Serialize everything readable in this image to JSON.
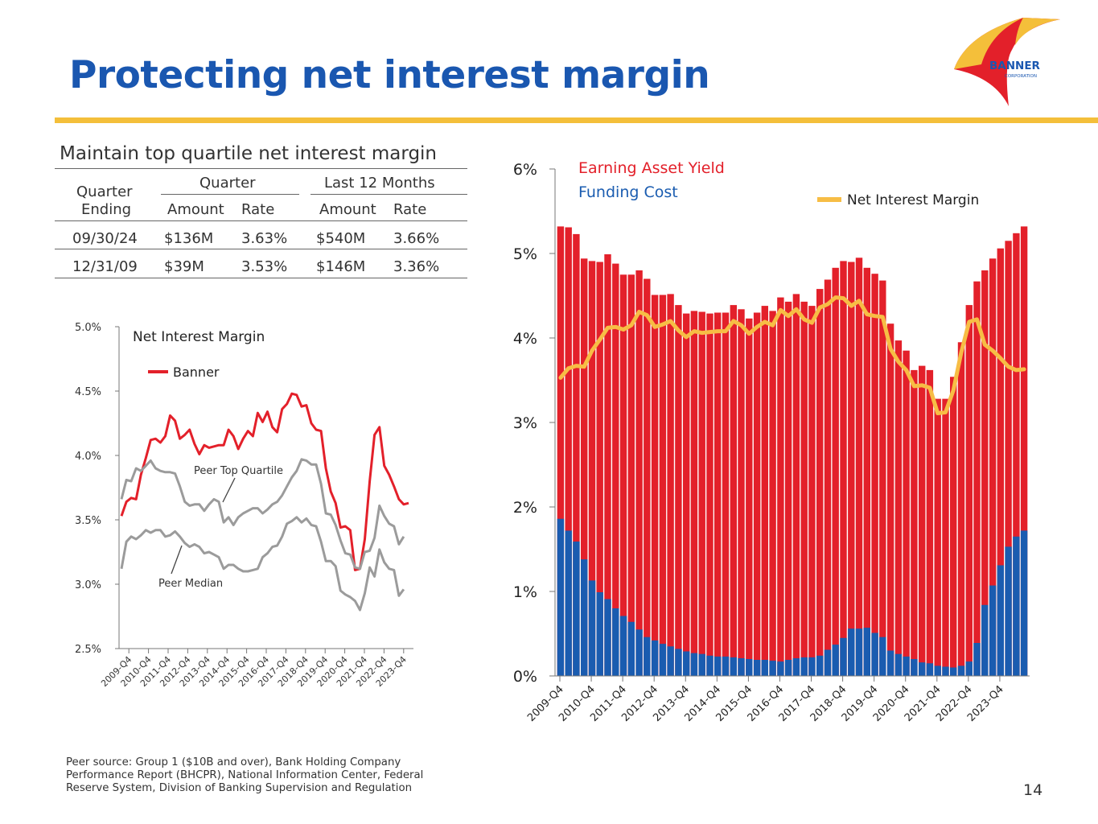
{
  "slide": {
    "title": "Protecting net interest margin",
    "page_number": "14",
    "footnote": "Peer source: Group 1 ($10B and over), Bank Holding Company Performance Report (BHCPR), National Information Center, Federal Reserve System, Division of Banking Supervision and Regulation"
  },
  "logo": {
    "line1": "BANNER",
    "line2": "CORPORATION"
  },
  "colors": {
    "title_blue": "#1a57b0",
    "rule_gold": "#f4bf3a",
    "banner_red": "#e3202a",
    "funding_blue": "#1a5cb0",
    "nim_gold": "#f7bd45",
    "peer_gray": "#9b9b9b"
  },
  "table": {
    "title": "Maintain top quartile net interest margin",
    "header": {
      "quarter_ending_1": "Quarter",
      "quarter_ending_2": "Ending",
      "group_quarter": "Quarter",
      "group_ltm": "Last 12 Months",
      "amount": "Amount",
      "rate": "Rate"
    },
    "rows": [
      {
        "ending": "09/30/24",
        "q_amount": "$136M",
        "q_rate": "3.63%",
        "ltm_amount": "$540M",
        "ltm_rate": "3.66%"
      },
      {
        "ending": "12/31/09",
        "q_amount": "$39M",
        "q_rate": "3.53%",
        "ltm_amount": "$146M",
        "ltm_rate": "3.36%"
      }
    ]
  },
  "chart_data": [
    {
      "type": "line",
      "title": "Net Interest Margin",
      "ylim": [
        2.5,
        5.0
      ],
      "y_ticks": [
        "2.5%",
        "3.0%",
        "3.5%",
        "4.0%",
        "4.5%",
        "5.0%"
      ],
      "x_ticks": [
        "2009-Q4",
        "2010-Q4",
        "2011-Q4",
        "2012-Q4",
        "2013-Q4",
        "2014-Q4",
        "2015-Q4",
        "2016-Q4",
        "2017-Q4",
        "2018-Q4",
        "2019-Q4",
        "2020-Q4",
        "2021-Q4",
        "2022-Q4",
        "2023-Q4"
      ],
      "legend": "top-left",
      "annotations": [
        "Peer Top Quartile",
        "Peer Median"
      ],
      "series": [
        {
          "name": "Banner",
          "color": "#e3202a",
          "values": [
            3.53,
            3.64,
            3.67,
            3.66,
            3.85,
            3.98,
            4.12,
            4.13,
            4.1,
            4.15,
            4.31,
            4.27,
            4.13,
            4.16,
            4.2,
            4.09,
            4.01,
            4.08,
            4.06,
            4.07,
            4.08,
            4.08,
            4.2,
            4.15,
            4.05,
            4.13,
            4.19,
            4.15,
            4.33,
            4.26,
            4.34,
            4.22,
            4.18,
            4.36,
            4.4,
            4.48,
            4.47,
            4.38,
            4.39,
            4.25,
            4.2,
            4.19,
            3.9,
            3.72,
            3.63,
            3.44,
            3.45,
            3.42,
            3.11,
            3.12,
            3.35,
            3.8,
            4.16,
            4.22,
            3.92,
            3.85,
            3.76,
            3.66,
            3.62,
            3.63
          ]
        },
        {
          "color": "#9b9b9b",
          "values": [
            3.66,
            3.81,
            3.8,
            3.9,
            3.88,
            3.92,
            3.96,
            3.9,
            3.88,
            3.87,
            3.87,
            3.86,
            3.76,
            3.64,
            3.61,
            3.62,
            3.62,
            3.57,
            3.62,
            3.66,
            3.64,
            3.48,
            3.52,
            3.46,
            3.52,
            3.55,
            3.57,
            3.59,
            3.59,
            3.55,
            3.58,
            3.62,
            3.64,
            3.69,
            3.76,
            3.83,
            3.88,
            3.97,
            3.96,
            3.93,
            3.93,
            3.78,
            3.55,
            3.54,
            3.46,
            3.34,
            3.24,
            3.23,
            3.13,
            3.12,
            3.25,
            3.26,
            3.36,
            3.61,
            3.53,
            3.47,
            3.45,
            3.31,
            3.37
          ]
        },
        {
          "color": "#9b9b9b",
          "values": [
            3.12,
            3.33,
            3.37,
            3.35,
            3.38,
            3.42,
            3.4,
            3.42,
            3.42,
            3.37,
            3.38,
            3.41,
            3.37,
            3.32,
            3.29,
            3.31,
            3.29,
            3.24,
            3.25,
            3.23,
            3.21,
            3.12,
            3.15,
            3.15,
            3.12,
            3.1,
            3.1,
            3.11,
            3.12,
            3.21,
            3.24,
            3.29,
            3.3,
            3.37,
            3.47,
            3.49,
            3.52,
            3.48,
            3.51,
            3.46,
            3.45,
            3.33,
            3.18,
            3.18,
            3.14,
            2.95,
            2.92,
            2.9,
            2.87,
            2.8,
            2.93,
            3.13,
            3.06,
            3.27,
            3.17,
            3.12,
            3.11,
            2.91,
            2.96
          ]
        }
      ]
    },
    {
      "type": "bar",
      "ylim": [
        0,
        6
      ],
      "y_ticks": [
        "0%",
        "1%",
        "2%",
        "3%",
        "4%",
        "5%",
        "6%"
      ],
      "x_ticks": [
        "2009-Q4",
        "2010-Q4",
        "2011-Q4",
        "2012-Q4",
        "2013-Q4",
        "2014-Q4",
        "2015-Q4",
        "2016-Q4",
        "2017-Q4",
        "2018-Q4",
        "2019-Q4",
        "2020-Q4",
        "2021-Q4",
        "2022-Q4",
        "2023-Q4"
      ],
      "series": [
        {
          "name": "Earning Asset Yield",
          "color": "#e3202a",
          "values": [
            5.32,
            5.31,
            5.23,
            4.94,
            4.91,
            4.9,
            4.99,
            4.88,
            4.75,
            4.75,
            4.8,
            4.7,
            4.51,
            4.51,
            4.52,
            4.39,
            4.29,
            4.32,
            4.31,
            4.29,
            4.3,
            4.3,
            4.39,
            4.34,
            4.23,
            4.3,
            4.38,
            4.32,
            4.48,
            4.43,
            4.52,
            4.43,
            4.38,
            4.58,
            4.69,
            4.83,
            4.91,
            4.9,
            4.95,
            4.83,
            4.76,
            4.68,
            4.17,
            3.97,
            3.85,
            3.62,
            3.67,
            3.62,
            3.28,
            3.28,
            3.54,
            3.95,
            4.39,
            4.67,
            4.8,
            4.94,
            5.06,
            5.15,
            5.24,
            5.32
          ]
        },
        {
          "name": "Funding Cost",
          "color": "#1a5cb0",
          "values": [
            1.86,
            1.72,
            1.59,
            1.38,
            1.13,
            0.99,
            0.91,
            0.8,
            0.71,
            0.64,
            0.55,
            0.46,
            0.42,
            0.38,
            0.35,
            0.32,
            0.29,
            0.27,
            0.26,
            0.24,
            0.23,
            0.23,
            0.22,
            0.21,
            0.2,
            0.19,
            0.19,
            0.18,
            0.17,
            0.19,
            0.21,
            0.22,
            0.22,
            0.24,
            0.31,
            0.37,
            0.45,
            0.56,
            0.56,
            0.57,
            0.51,
            0.46,
            0.3,
            0.26,
            0.23,
            0.2,
            0.16,
            0.15,
            0.12,
            0.11,
            0.1,
            0.12,
            0.17,
            0.39,
            0.84,
            1.07,
            1.31,
            1.53,
            1.65,
            1.72
          ]
        },
        {
          "name": "Net Interest Margin",
          "color": "#f7bd45",
          "values": [
            3.53,
            3.64,
            3.67,
            3.66,
            3.85,
            3.98,
            4.12,
            4.13,
            4.1,
            4.15,
            4.31,
            4.27,
            4.13,
            4.16,
            4.2,
            4.09,
            4.01,
            4.08,
            4.06,
            4.07,
            4.08,
            4.08,
            4.2,
            4.15,
            4.05,
            4.13,
            4.19,
            4.15,
            4.33,
            4.26,
            4.34,
            4.22,
            4.18,
            4.36,
            4.4,
            4.48,
            4.47,
            4.38,
            4.44,
            4.28,
            4.26,
            4.25,
            3.87,
            3.72,
            3.62,
            3.43,
            3.44,
            3.41,
            3.11,
            3.12,
            3.38,
            3.83,
            4.19,
            4.22,
            3.92,
            3.85,
            3.76,
            3.66,
            3.62,
            3.63
          ]
        }
      ]
    }
  ]
}
